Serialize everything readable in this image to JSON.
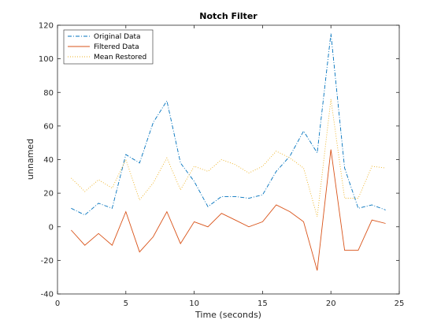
{
  "chart_data": {
    "type": "line",
    "title": "Notch Filter",
    "xlabel": "Time (seconds)",
    "ylabel": "unnamed",
    "xlim": [
      0,
      25
    ],
    "ylim": [
      -40,
      120
    ],
    "xticks": [
      0,
      5,
      10,
      15,
      20,
      25
    ],
    "yticks": [
      -40,
      -20,
      0,
      20,
      40,
      60,
      80,
      100,
      120
    ],
    "grid": false,
    "legend_position": "top-left",
    "x": [
      1,
      2,
      3,
      4,
      5,
      6,
      7,
      8,
      9,
      10,
      11,
      12,
      13,
      14,
      15,
      16,
      17,
      18,
      19,
      20,
      21,
      22,
      23,
      24
    ],
    "series": [
      {
        "name": "Original Data",
        "color": "#0072BD",
        "line_style": "dash-dot",
        "values": [
          11,
          7,
          14,
          11,
          43,
          38,
          62,
          75,
          38,
          27,
          12,
          18,
          18,
          17,
          19,
          33,
          42,
          57,
          44,
          115,
          35,
          11,
          13,
          10
        ]
      },
      {
        "name": "Filtered Data",
        "color": "#D95319",
        "line_style": "solid",
        "values": [
          -2,
          -11,
          -4,
          -11,
          9,
          -15,
          -6,
          9,
          -10,
          3,
          0,
          8,
          4,
          0,
          3,
          13,
          9,
          3,
          -26,
          46,
          -14,
          -14,
          4,
          2
        ]
      },
      {
        "name": "Mean Restored",
        "color": "#EDB120",
        "line_style": "dotted",
        "values": [
          29,
          21,
          28,
          23,
          40,
          16,
          26,
          41,
          22,
          36,
          33,
          40,
          37,
          32,
          36,
          45,
          41,
          35,
          6,
          76,
          17,
          17,
          36,
          35
        ]
      }
    ]
  }
}
